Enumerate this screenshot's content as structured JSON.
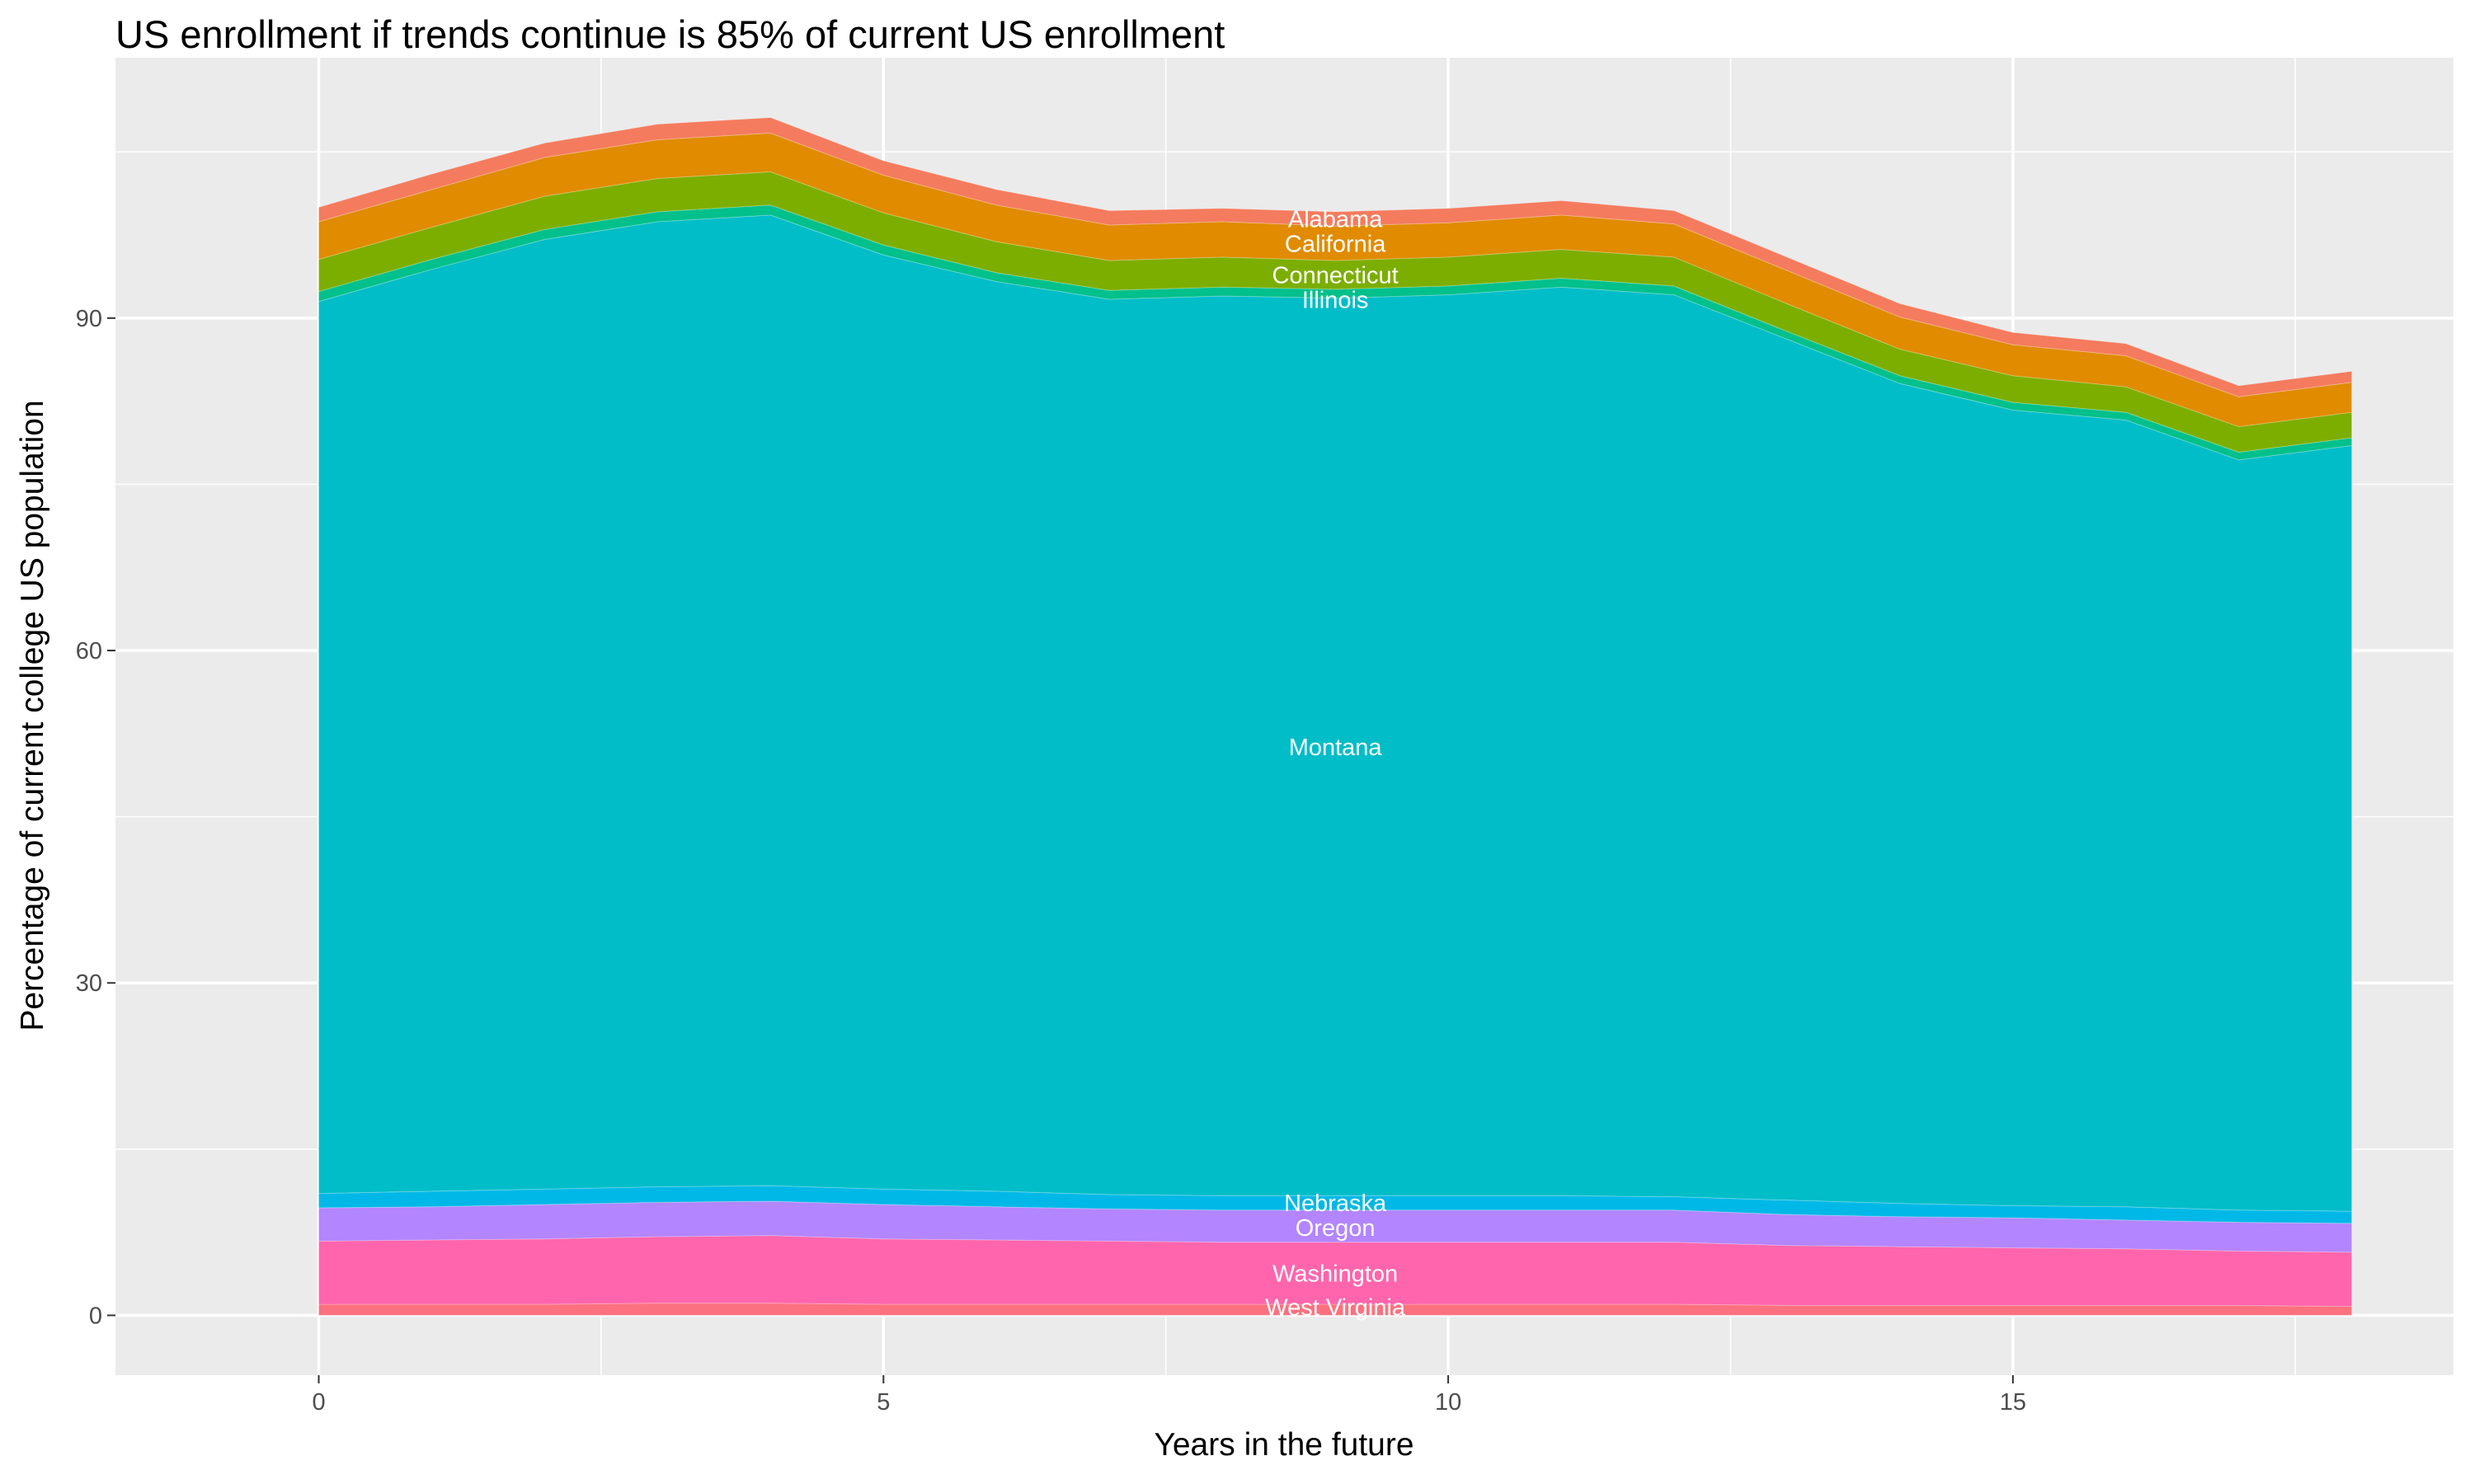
{
  "chart_data": {
    "type": "area",
    "stacked": true,
    "title": "US enrollment if trends continue is 85% of current US enrollment",
    "xlabel": "Years in the future",
    "ylabel": "Percentage of current college US population",
    "xlim": [
      -1.8,
      18.9
    ],
    "ylim": [
      -5.4,
      113.5
    ],
    "x_ticks": [
      0,
      5,
      10,
      15
    ],
    "y_ticks": [
      0,
      30,
      60,
      90
    ],
    "grid": true,
    "legend": "none",
    "x": [
      0,
      1,
      2,
      3,
      4,
      5,
      6,
      7,
      8,
      9,
      10,
      11,
      12,
      13,
      14,
      15,
      16,
      17,
      18
    ],
    "series": [
      {
        "name": "West Virginia",
        "color": "#FC717F",
        "values": [
          1.0,
          1.0,
          1.0,
          1.1,
          1.1,
          1.0,
          1.0,
          1.0,
          1.0,
          1.0,
          1.0,
          1.0,
          1.0,
          0.9,
          0.9,
          0.9,
          0.9,
          0.9,
          0.8
        ]
      },
      {
        "name": "Washington",
        "color": "#FF65AC",
        "values": [
          5.7,
          5.8,
          5.9,
          6.0,
          6.1,
          5.9,
          5.8,
          5.7,
          5.6,
          5.6,
          5.6,
          5.6,
          5.6,
          5.4,
          5.3,
          5.2,
          5.1,
          4.9,
          4.9
        ]
      },
      {
        "name": "Oregon",
        "color": "#B385FF",
        "values": [
          3.0,
          3.0,
          3.1,
          3.1,
          3.1,
          3.1,
          3.0,
          2.9,
          2.9,
          2.9,
          2.9,
          2.9,
          2.9,
          2.8,
          2.7,
          2.7,
          2.6,
          2.6,
          2.6
        ]
      },
      {
        "name": "Nebraska",
        "color": "#00B8E7",
        "values": [
          1.3,
          1.4,
          1.4,
          1.4,
          1.4,
          1.4,
          1.4,
          1.3,
          1.3,
          1.3,
          1.3,
          1.3,
          1.2,
          1.3,
          1.2,
          1.1,
          1.2,
          1.1,
          1.1
        ]
      },
      {
        "name": "Montana",
        "color": "#00BDC8",
        "values": [
          80.5,
          83.2,
          85.7,
          87.1,
          87.6,
          84.3,
          82.1,
          80.8,
          81.2,
          81.0,
          81.3,
          82.0,
          81.4,
          77.7,
          74.0,
          71.8,
          71.0,
          67.7,
          69.1
        ]
      },
      {
        "name": "Illinois",
        "color": "#00C08B",
        "values": [
          0.9,
          0.9,
          0.9,
          0.9,
          0.9,
          0.9,
          0.8,
          0.8,
          0.8,
          0.8,
          0.8,
          0.8,
          0.8,
          0.7,
          0.7,
          0.7,
          0.7,
          0.7,
          0.7
        ]
      },
      {
        "name": "Connecticut",
        "color": "#7CAE00",
        "values": [
          2.9,
          2.9,
          3.0,
          3.0,
          3.0,
          2.9,
          2.8,
          2.7,
          2.7,
          2.6,
          2.6,
          2.6,
          2.6,
          2.5,
          2.4,
          2.4,
          2.3,
          2.3,
          2.3
        ]
      },
      {
        "name": "California",
        "color": "#E08B00",
        "values": [
          3.4,
          3.4,
          3.5,
          3.5,
          3.5,
          3.4,
          3.3,
          3.2,
          3.2,
          3.1,
          3.1,
          3.1,
          3.0,
          3.0,
          2.9,
          2.8,
          2.8,
          2.7,
          2.7
        ]
      },
      {
        "name": "Alabama",
        "color": "#F47B5E",
        "values": [
          1.3,
          1.4,
          1.3,
          1.4,
          1.4,
          1.3,
          1.4,
          1.3,
          1.2,
          1.3,
          1.3,
          1.3,
          1.2,
          1.2,
          1.2,
          1.1,
          1.1,
          1.0,
          1.0
        ]
      }
    ]
  }
}
